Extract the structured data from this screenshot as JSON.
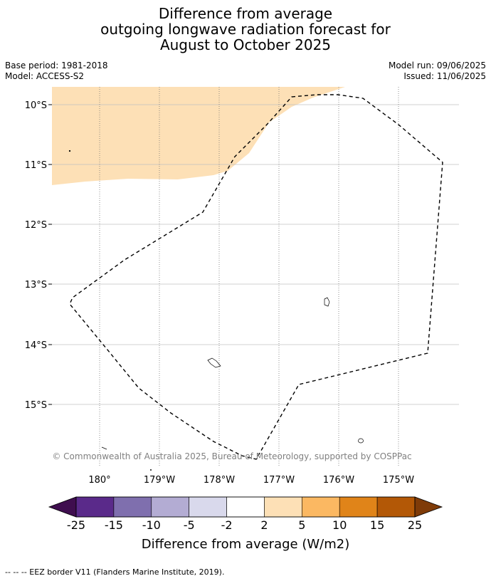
{
  "title": {
    "line1": "Difference from average",
    "line2": "outgoing longwave radiation forecast for",
    "line3": "August to October 2025"
  },
  "meta": {
    "base_period": "Base period: 1981-2018",
    "model": "Model: ACCESS-S2",
    "model_run": "Model run: 09/06/2025",
    "issued": "Issued: 11/06/2025"
  },
  "map": {
    "lat_labels": [
      "10°S",
      "11°S",
      "12°S",
      "13°S",
      "14°S",
      "15°S"
    ],
    "lon_labels": [
      "180°",
      "179°W",
      "178°W",
      "177°W",
      "176°W",
      "175°W"
    ],
    "copyright": "© Commonwealth of Australia 2025, Bureau of Meteorology, supported by COSPPac",
    "anomaly_fill_color": "#fde0b6",
    "eez_line_color": "#000000"
  },
  "colorbar": {
    "tick_labels": [
      "-25",
      "-15",
      "-10",
      "-5",
      "-2",
      "2",
      "5",
      "10",
      "15",
      "25"
    ],
    "colors": [
      "#3f0e4f",
      "#5a2a8a",
      "#7f6fae",
      "#b3acd3",
      "#d9d9ec",
      "#ffffff",
      "#fde0b6",
      "#fbb862",
      "#e08419",
      "#b35806",
      "#7f3b08"
    ],
    "label": "Difference from average (W/m2)"
  },
  "footer": {
    "legend": "--  --  -- EEZ border V11 (Flanders Marine Institute, 2019)."
  }
}
